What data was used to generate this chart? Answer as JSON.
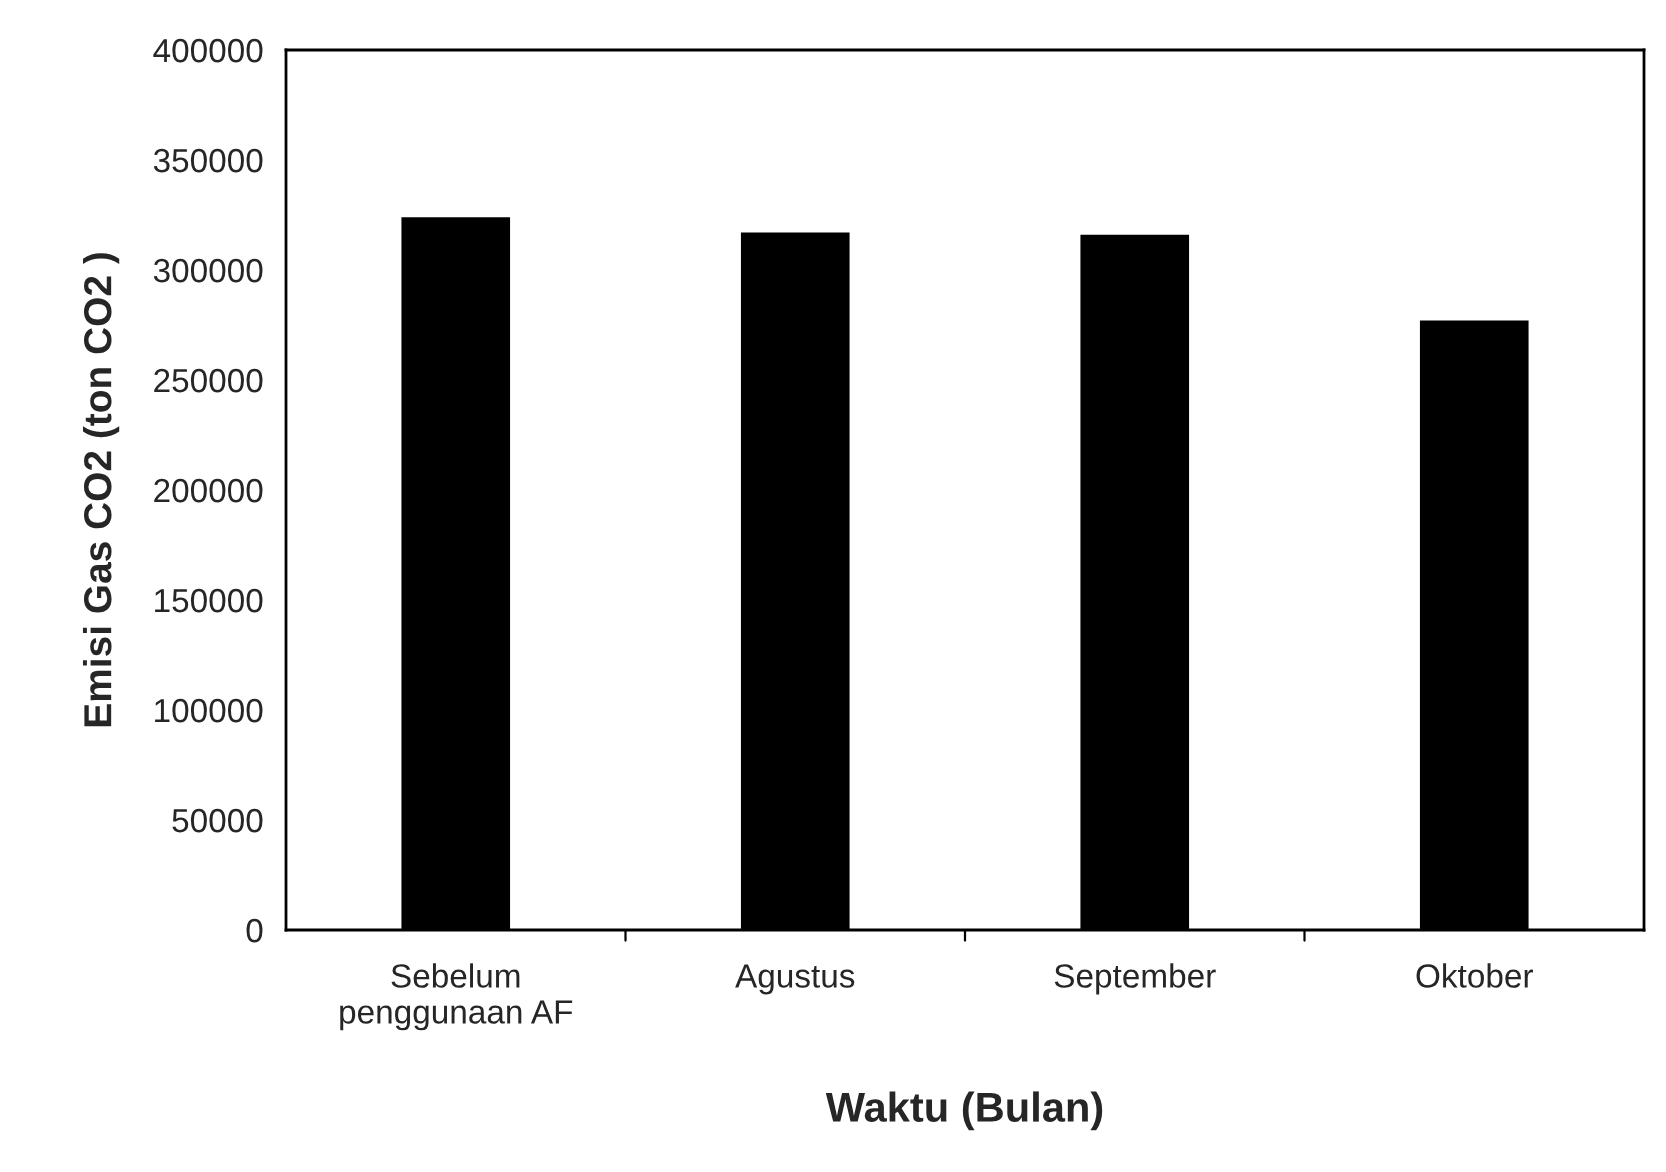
{
  "chart_data": {
    "type": "bar",
    "xlabel": "Waktu (Bulan)",
    "ylabel": "Emisi Gas CO2 (ton CO2 )",
    "categories": [
      "Sebelum\npenggunaan AF",
      "Agustus",
      "September",
      "Oktober"
    ],
    "values": [
      324000,
      317000,
      316000,
      277000
    ],
    "color": "#000000",
    "ylim": [
      0,
      400000
    ],
    "yticks": [
      0,
      50000,
      100000,
      150000,
      200000,
      250000,
      300000,
      350000,
      400000
    ],
    "grid": false
  }
}
